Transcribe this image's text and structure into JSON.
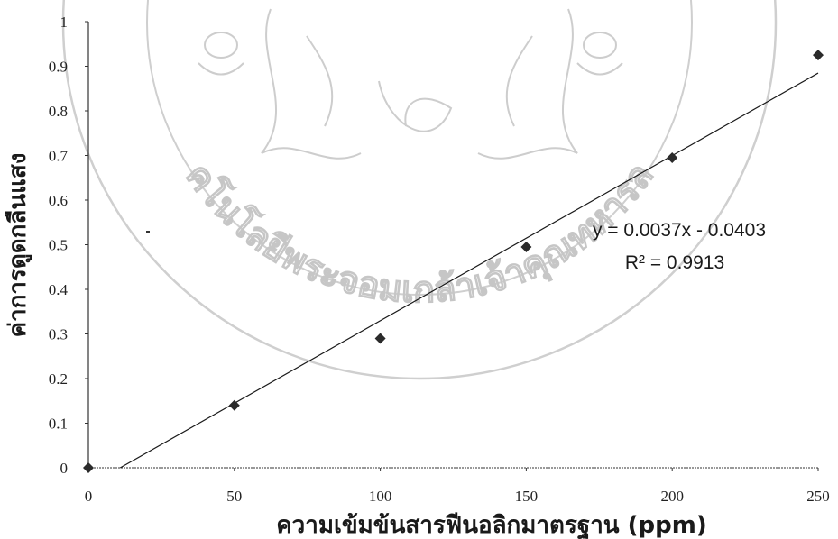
{
  "chart_data": {
    "type": "scatter",
    "x": [
      0,
      50,
      100,
      150,
      200,
      250
    ],
    "y": [
      0,
      0.14,
      0.29,
      0.495,
      0.695,
      0.925
    ],
    "xlabel": "ความเข้มข้นสารฟีนอลิกมาตรฐาน (ppm)",
    "ylabel": "ค่าการดูดกลืนแสง",
    "xlim": [
      0,
      250
    ],
    "ylim": [
      0,
      1
    ],
    "x_ticks": [
      "0",
      "50",
      "100",
      "150",
      "200",
      "250"
    ],
    "y_ticks": [
      "0",
      "0.1",
      "0.2",
      "0.3",
      "0.4",
      "0.5",
      "0.6",
      "0.7",
      "0.8",
      "0.9",
      "1"
    ],
    "trendline": {
      "type": "linear",
      "slope": 0.0037,
      "intercept": -0.0403,
      "equation": "y = 0.0037x - 0.0403",
      "r_squared": "R² = 0.9913"
    },
    "grid": false,
    "marker": "diamond",
    "marker_color": "#2b2b2b",
    "line_color": "#1a1a1a"
  },
  "watermark": {
    "text": "คโนโลยีพระจอมเกล้าเจ้าคุณทหารล"
  }
}
